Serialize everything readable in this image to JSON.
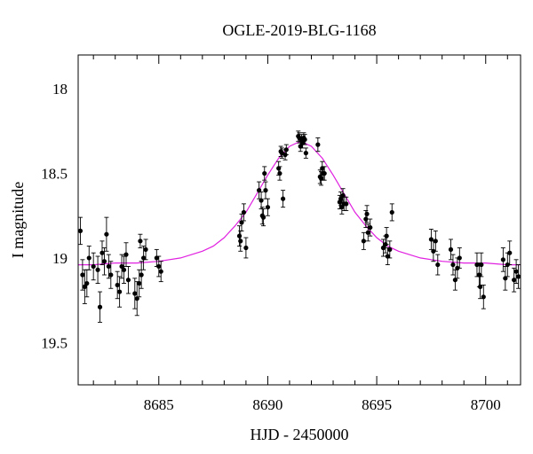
{
  "chart_data": {
    "type": "scatter",
    "title": "OGLE-2019-BLG-1168",
    "xlabel": "HJD - 2450000",
    "ylabel": "I magnitude",
    "xlim": [
      8681.3,
      8701.6
    ],
    "ylim": [
      19.75,
      17.8
    ],
    "y_inverted": true,
    "x_ticks_major": [
      8685,
      8690,
      8695,
      8700
    ],
    "x_tick_labels": [
      "8685",
      "8690",
      "8695",
      "8700"
    ],
    "y_ticks_major": [
      18,
      18.5,
      19,
      19.5
    ],
    "y_tick_labels": [
      "18",
      "18.5",
      "19",
      "19.5"
    ],
    "colors": {
      "model": "#e020e0",
      "points": "#000000"
    },
    "model": {
      "name": "",
      "t0": 8691.5,
      "peak_mag": 18.31,
      "baseline_mag": 19.04,
      "x": [
        8681.3,
        8682,
        8683,
        8684,
        8685,
        8686,
        8687,
        8687.5,
        8688,
        8688.5,
        8689,
        8689.5,
        8690,
        8690.5,
        8691,
        8691.5,
        8692,
        8692.5,
        8693,
        8693.5,
        8694,
        8694.5,
        8695,
        8695.5,
        8696,
        8697,
        8698,
        8699,
        8700,
        8701,
        8701.6
      ],
      "y": [
        19.04,
        19.04,
        19.03,
        19.03,
        19.02,
        19.0,
        18.96,
        18.93,
        18.88,
        18.81,
        18.73,
        18.62,
        18.51,
        18.41,
        18.34,
        18.31,
        18.34,
        18.41,
        18.51,
        18.62,
        18.73,
        18.81,
        18.88,
        18.93,
        18.96,
        19.0,
        19.02,
        19.03,
        19.03,
        19.04,
        19.04
      ]
    },
    "series": [
      {
        "x": [
          8681.4,
          8681.5,
          8681.6,
          8681.7,
          8681.8,
          8682.0,
          8682.2,
          8682.3,
          8682.4,
          8682.5,
          8682.6,
          8682.7,
          8682.8,
          8683.1,
          8683.2,
          8683.3,
          8683.4,
          8683.5,
          8683.6,
          8683.9,
          8684.0,
          8684.1,
          8684.15,
          8684.2,
          8684.3,
          8684.4,
          8684.9,
          8685.0,
          8685.1,
          8688.7,
          8688.75,
          8688.8,
          8688.9,
          8689.0,
          8689.6,
          8689.7,
          8689.75,
          8689.8,
          8689.85,
          8689.9,
          8690.0,
          8690.5,
          8690.55,
          8690.6,
          8690.65,
          8690.7,
          8690.8,
          8690.85,
          8691.4,
          8691.45,
          8691.5,
          8691.55,
          8691.6,
          8691.65,
          8691.7,
          8691.75,
          8692.3,
          8692.4,
          8692.45,
          8692.5,
          8692.55,
          8692.6,
          8693.3,
          8693.35,
          8693.4,
          8693.45,
          8693.5,
          8693.6,
          8694.4,
          8694.5,
          8694.55,
          8694.6,
          8694.7,
          8695.3,
          8695.4,
          8695.45,
          8695.5,
          8695.6,
          8695.7,
          8697.5,
          8697.6,
          8697.7,
          8697.8,
          8698.4,
          8698.5,
          8698.6,
          8698.7,
          8698.8,
          8699.6,
          8699.7,
          8699.75,
          8699.8,
          8699.9,
          8700.8,
          8700.9,
          8701.0,
          8701.1,
          8701.3,
          8701.4,
          8701.5
        ],
        "y": [
          18.84,
          19.1,
          19.17,
          19.15,
          19.0,
          19.05,
          19.07,
          19.29,
          18.97,
          19.02,
          18.86,
          19.05,
          19.1,
          19.16,
          19.2,
          19.05,
          19.07,
          18.98,
          19.13,
          19.21,
          19.24,
          19.15,
          18.9,
          19.1,
          19.0,
          18.95,
          19.0,
          19.05,
          19.08,
          18.87,
          18.9,
          18.79,
          18.73,
          18.94,
          18.6,
          18.66,
          18.75,
          18.76,
          18.5,
          18.6,
          18.7,
          18.47,
          18.5,
          18.37,
          18.38,
          18.65,
          18.39,
          18.36,
          18.28,
          18.29,
          18.34,
          18.3,
          18.32,
          18.29,
          18.3,
          18.38,
          18.33,
          18.52,
          18.53,
          18.47,
          18.5,
          18.5,
          18.67,
          18.65,
          18.7,
          18.63,
          18.68,
          18.68,
          18.9,
          18.77,
          18.74,
          18.85,
          18.82,
          18.94,
          18.92,
          18.87,
          18.99,
          18.95,
          18.73,
          18.89,
          18.96,
          18.9,
          19.04,
          18.95,
          19.04,
          19.13,
          19.06,
          19.0,
          19.04,
          19.1,
          19.17,
          19.04,
          19.23,
          19.01,
          19.12,
          19.04,
          18.97,
          19.13,
          19.08,
          19.11
        ],
        "err": [
          0.08,
          0.09,
          0.1,
          0.08,
          0.07,
          0.08,
          0.08,
          0.09,
          0.07,
          0.08,
          0.1,
          0.07,
          0.08,
          0.08,
          0.09,
          0.07,
          0.08,
          0.07,
          0.08,
          0.09,
          0.1,
          0.08,
          0.04,
          0.08,
          0.07,
          0.06,
          0.05,
          0.06,
          0.06,
          0.06,
          0.06,
          0.05,
          0.05,
          0.06,
          0.05,
          0.05,
          0.05,
          0.05,
          0.04,
          0.05,
          0.05,
          0.04,
          0.04,
          0.03,
          0.03,
          0.05,
          0.03,
          0.03,
          0.03,
          0.03,
          0.03,
          0.03,
          0.03,
          0.03,
          0.03,
          0.03,
          0.04,
          0.04,
          0.04,
          0.04,
          0.04,
          0.04,
          0.04,
          0.04,
          0.04,
          0.04,
          0.04,
          0.04,
          0.05,
          0.05,
          0.05,
          0.05,
          0.05,
          0.05,
          0.05,
          0.05,
          0.05,
          0.05,
          0.05,
          0.06,
          0.06,
          0.06,
          0.06,
          0.06,
          0.06,
          0.06,
          0.06,
          0.06,
          0.07,
          0.07,
          0.07,
          0.07,
          0.07,
          0.07,
          0.07,
          0.07,
          0.07,
          0.07,
          0.07,
          0.07
        ]
      }
    ],
    "grid": false,
    "legend": "none"
  }
}
